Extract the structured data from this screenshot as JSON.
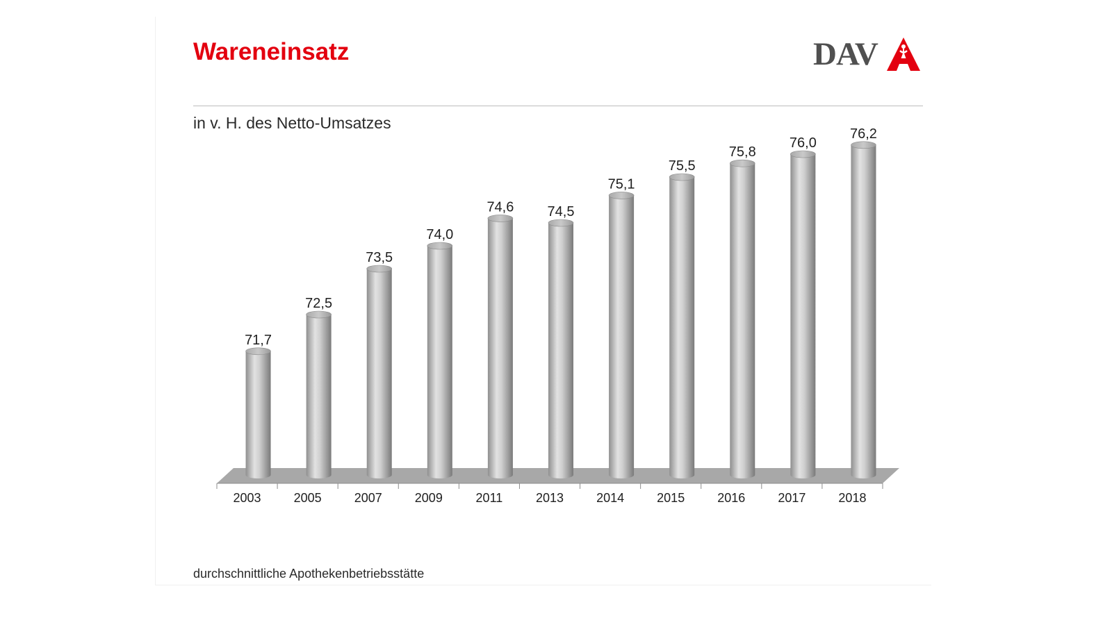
{
  "header": {
    "title": "Wareneinsatz",
    "logo_text": "DAV"
  },
  "subtitle": "in v. H. des Netto-Umsatzes",
  "footnote": "durchschnittliche Apothekenbetriebsstätte",
  "colors": {
    "title": "#e3000f",
    "logo_red": "#e3000f",
    "logo_gray": "#505050",
    "bar_gray": "#b4b4b4",
    "floor_gray": "#a6a6a6"
  },
  "chart_data": {
    "type": "bar",
    "style": "3d-cylinder",
    "categories": [
      "2003",
      "2005",
      "2007",
      "2009",
      "2011",
      "2013",
      "2014",
      "2015",
      "2016",
      "2017",
      "2018"
    ],
    "values": [
      71.7,
      72.5,
      73.5,
      74.0,
      74.6,
      74.5,
      75.1,
      75.5,
      75.8,
      76.0,
      76.2
    ],
    "value_labels": [
      "71,7",
      "72,5",
      "73,5",
      "74,0",
      "74,6",
      "74,5",
      "75,1",
      "75,5",
      "75,8",
      "76,0",
      "76,2"
    ],
    "title": "Wareneinsatz",
    "ylabel": "in v. H. des Netto-Umsatzes",
    "xlabel": "",
    "ylim": [
      69.0,
      77.0
    ],
    "grid": false,
    "legend": "none"
  }
}
